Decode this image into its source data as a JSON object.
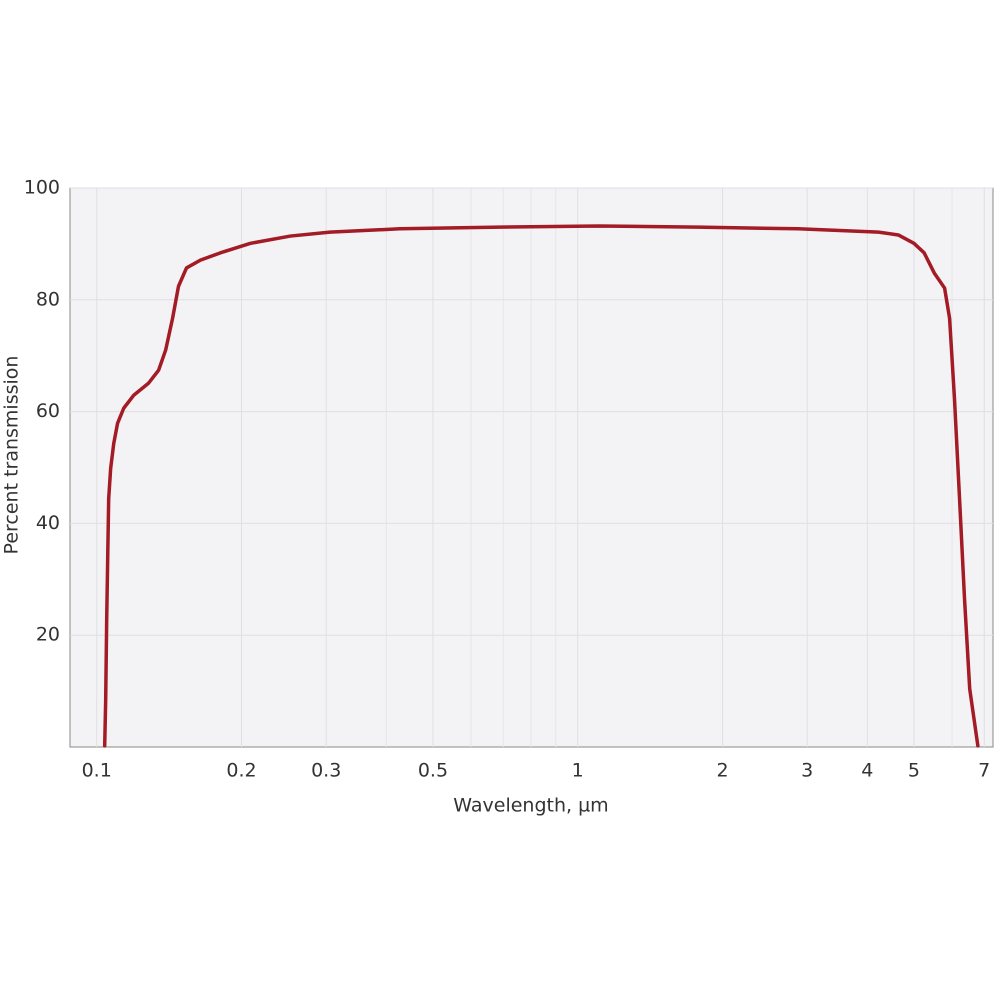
{
  "chart_data": {
    "type": "line",
    "x_label": "Wavelength, µm",
    "y_label": "Percent transmission",
    "x_scale": "log",
    "xlim": [
      0.088,
      7.3
    ],
    "xticks": [
      0.1,
      0.2,
      0.3,
      0.5,
      1,
      2,
      3,
      4,
      5,
      7
    ],
    "xminorticks": [
      0.4,
      0.6,
      0.7,
      0.8,
      0.9,
      6
    ],
    "ylim": [
      0,
      100
    ],
    "yticks": [
      20,
      40,
      60,
      80,
      100
    ],
    "grid": true,
    "series": [
      {
        "name": "Transmission",
        "color": "#a31b25",
        "x": [
          0.1039,
          0.1044,
          0.1049,
          0.1054,
          0.1059,
          0.1069,
          0.1085,
          0.1105,
          0.1138,
          0.1193,
          0.1282,
          0.1345,
          0.1391,
          0.1438,
          0.1479,
          0.1537,
          0.1643,
          0.1808,
          0.2088,
          0.2527,
          0.3055,
          0.427,
          0.687,
          1.107,
          1.78,
          2.87,
          4.22,
          4.64,
          5.0,
          5.25,
          5.51,
          5.79,
          5.93,
          6.07,
          6.22,
          6.37,
          6.53,
          6.79
        ],
        "values": [
          0.2,
          8.6,
          22.9,
          33.7,
          44.4,
          49.8,
          54.3,
          57.9,
          60.6,
          62.9,
          65.1,
          67.4,
          71.0,
          76.7,
          82.4,
          85.7,
          87.1,
          88.4,
          90.1,
          91.4,
          92.1,
          92.7,
          93.0,
          93.2,
          93.0,
          92.7,
          92.1,
          91.6,
          90.1,
          88.4,
          84.8,
          82.1,
          76.7,
          62.4,
          44.4,
          26.5,
          10.4,
          0.2
        ]
      }
    ]
  }
}
